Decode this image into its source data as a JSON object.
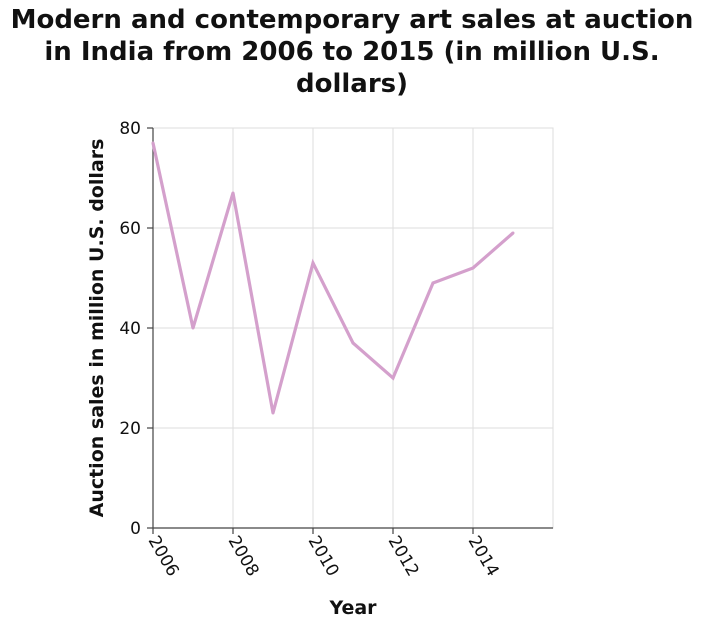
{
  "chart_data": {
    "type": "line",
    "title_lines": [
      "Modern and contemporary art sales at auction",
      "in India from 2006 to 2015 (in million U.S.",
      "dollars)"
    ],
    "xlabel": "Year",
    "ylabel": "Auction sales in million U.S. dollars",
    "x": [
      2006,
      2007,
      2008,
      2009,
      2010,
      2011,
      2012,
      2013,
      2014,
      2015
    ],
    "series": [
      {
        "name": "Auction sales",
        "values": [
          77,
          40,
          67,
          23,
          53,
          37,
          30,
          49,
          52,
          59
        ]
      }
    ],
    "xlim": [
      2006,
      2016
    ],
    "ylim": [
      0,
      80
    ],
    "xticks": [
      2006,
      2008,
      2010,
      2012,
      2014
    ],
    "yticks": [
      0,
      20,
      40,
      60,
      80
    ],
    "grid": true,
    "line_color": "#d4a0cc"
  }
}
